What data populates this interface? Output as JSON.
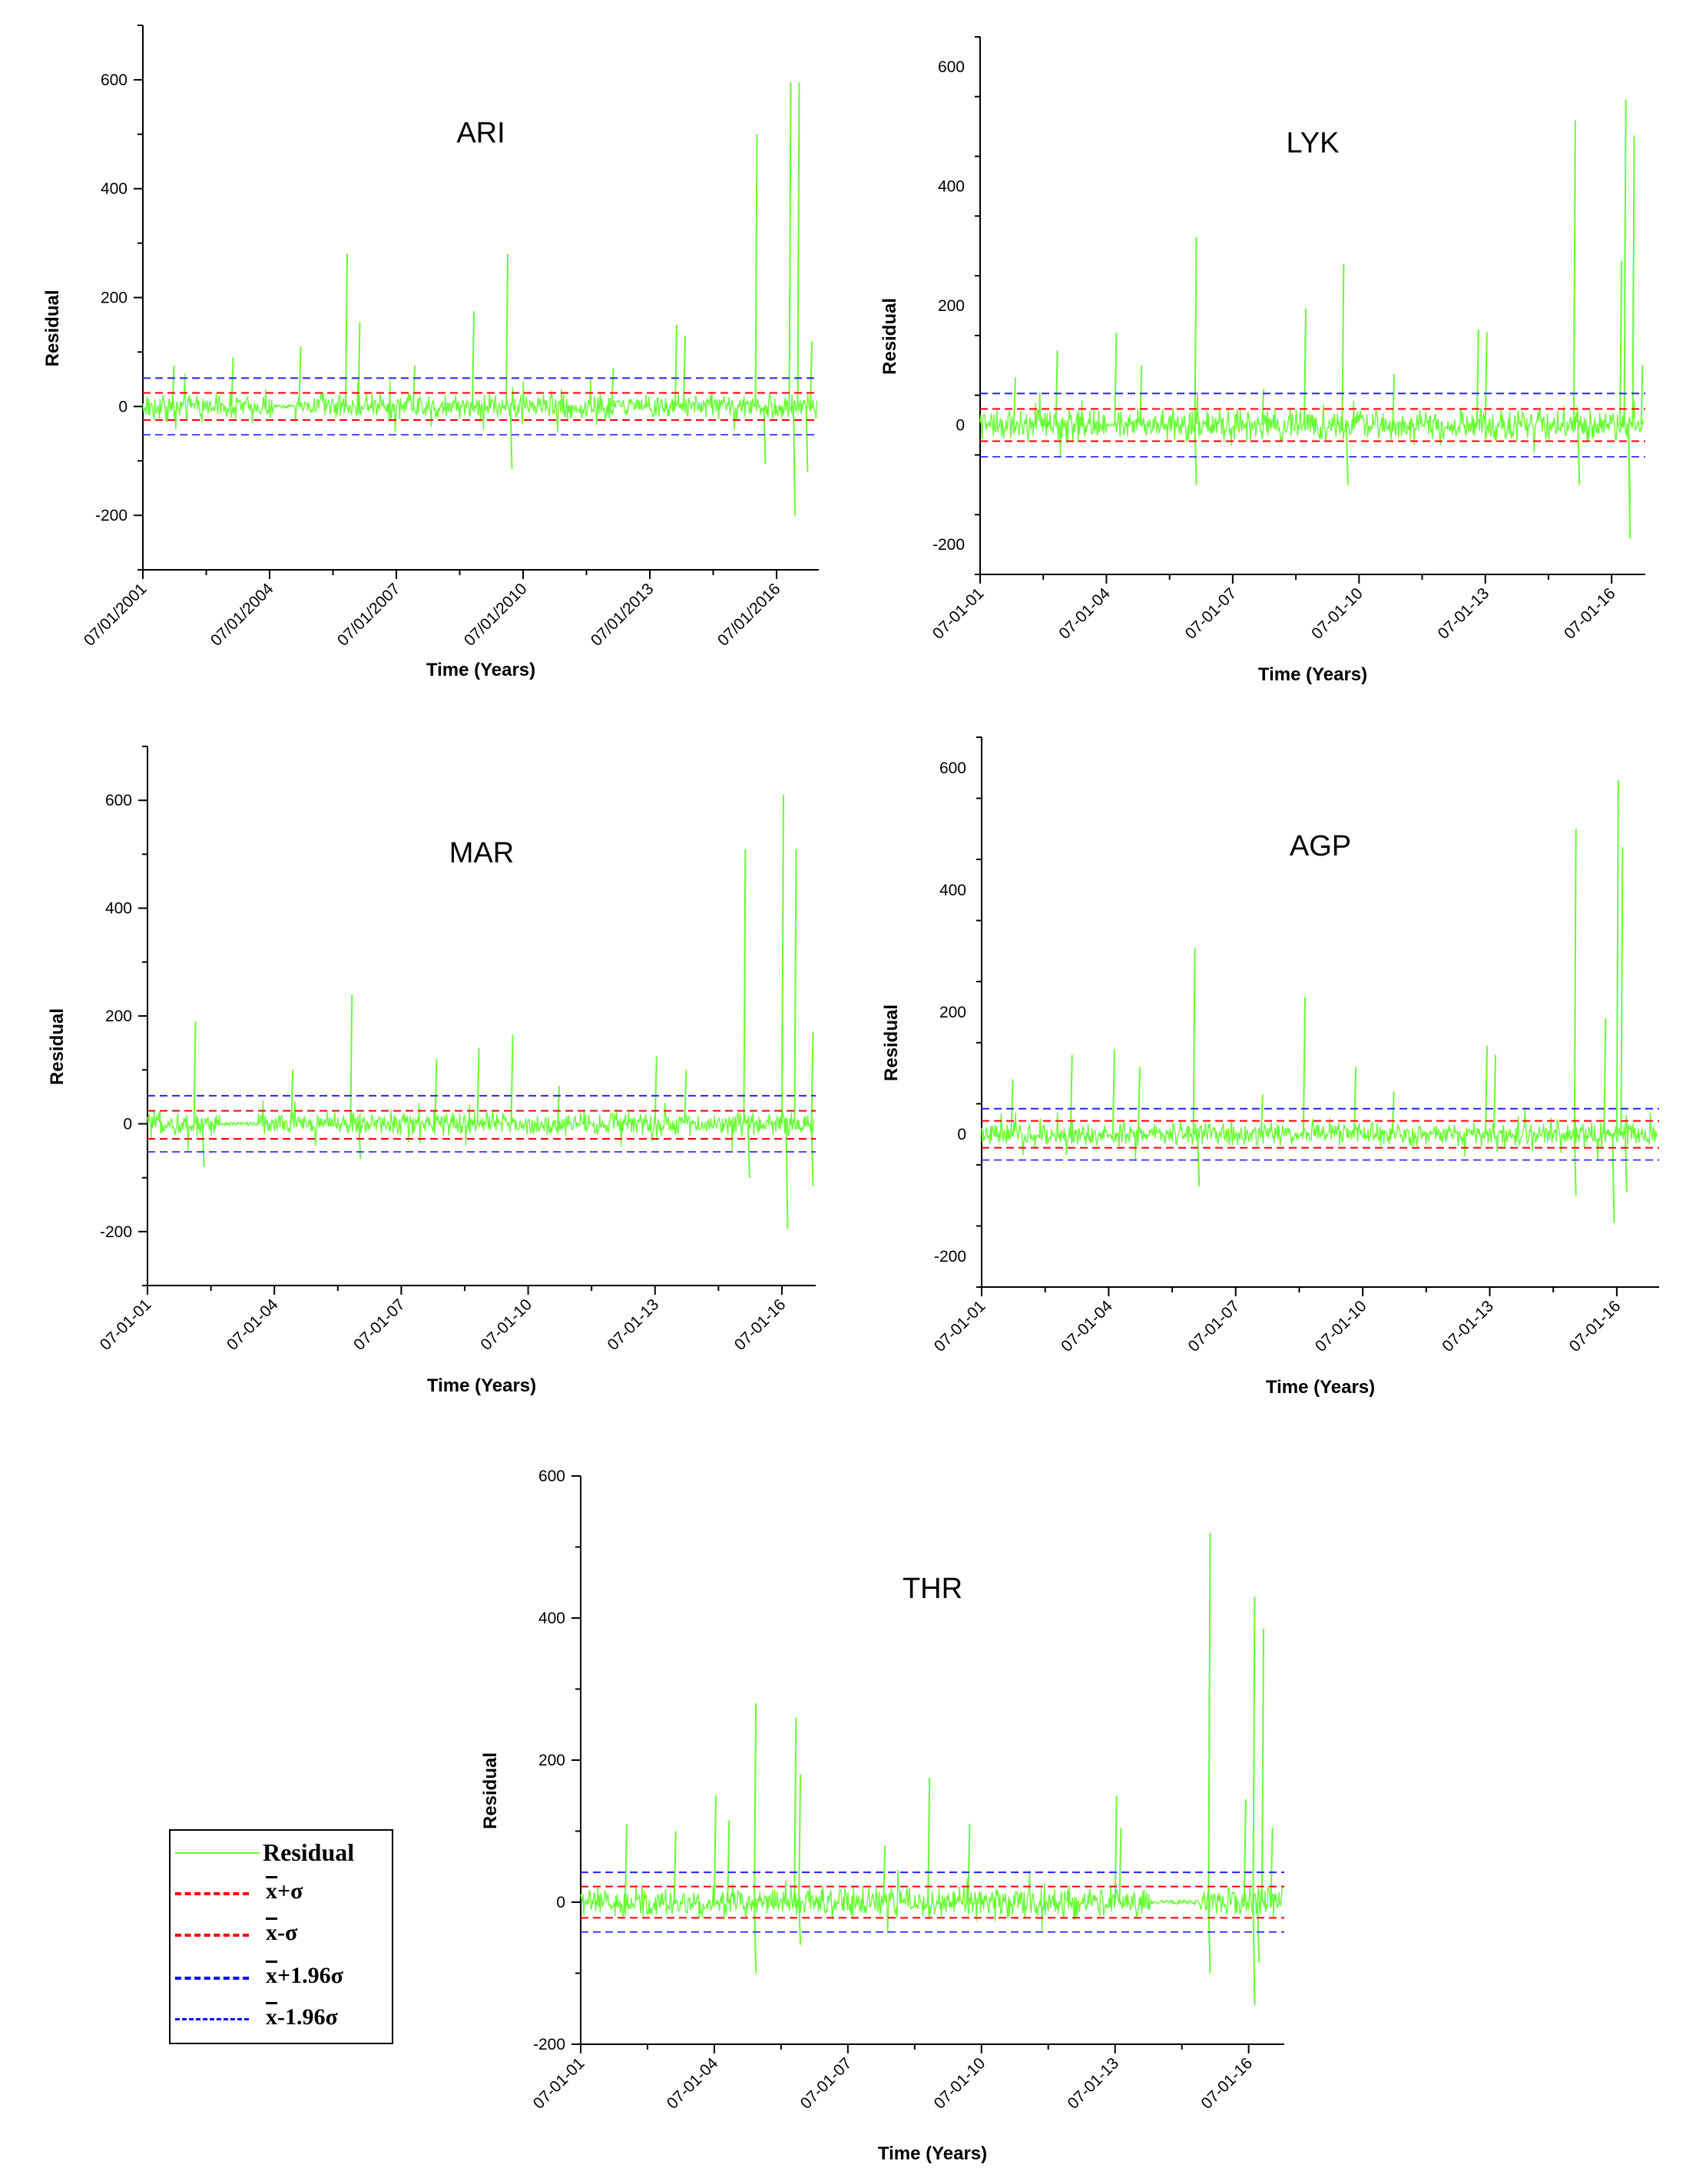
{
  "chart_data": [
    {
      "type": "line",
      "title": "ARI",
      "xlabel": "Time (Years)",
      "ylabel": "Residual",
      "xticks": [
        "07/01/2001",
        "07/01/2004",
        "07/01/2007",
        "07/01/2010",
        "07/01/2013",
        "07/01/2016"
      ],
      "xlim": [
        2001.5,
        2017.5
      ],
      "ylim": [
        -300,
        700
      ],
      "yticks": [
        -200,
        0,
        200,
        400,
        600
      ],
      "thresholds": {
        "mean_plus_sigma": 25,
        "mean_minus_sigma": -25,
        "mean_plus_1_96_sigma": 52,
        "mean_minus_1_96_sigma": -52
      },
      "gaps": [
        [
          2004.6,
          2005.1
        ]
      ],
      "spikes": [
        [
          2002.2,
          75
        ],
        [
          2003.6,
          90
        ],
        [
          2005.2,
          110
        ],
        [
          2006.3,
          280
        ],
        [
          2006.6,
          155
        ],
        [
          2007.9,
          75
        ],
        [
          2009.3,
          175
        ],
        [
          2010.1,
          280
        ],
        [
          2010.2,
          -115
        ],
        [
          2012.6,
          70
        ],
        [
          2014.1,
          150
        ],
        [
          2014.3,
          130
        ],
        [
          2016.0,
          500
        ],
        [
          2016.2,
          -105
        ],
        [
          2016.8,
          595
        ],
        [
          2017.0,
          595
        ],
        [
          2016.9,
          -200
        ],
        [
          2017.2,
          -120
        ],
        [
          2017.3,
          120
        ]
      ],
      "series": [
        {
          "name": "Residual",
          "noise": 22
        }
      ]
    },
    {
      "type": "line",
      "title": "LYK",
      "xlabel": "Time (Years)",
      "ylabel": "Residual",
      "xticks": [
        "07-01-01",
        "07-01-04",
        "07-01-07",
        "07-01-10",
        "07-01-13",
        "07-01-16"
      ],
      "xlim": [
        2001.5,
        2017.3
      ],
      "ylim": [
        -250,
        650
      ],
      "yticks": [
        -200,
        0,
        200,
        400,
        600
      ],
      "thresholds": {
        "mean_plus_sigma": 27,
        "mean_minus_sigma": -27,
        "mean_plus_1_96_sigma": 53,
        "mean_minus_1_96_sigma": -53
      },
      "gaps": [
        [
          2004.5,
          2004.7
        ]
      ],
      "spikes": [
        [
          2002.3,
          80
        ],
        [
          2003.3,
          125
        ],
        [
          2004.7,
          155
        ],
        [
          2005.3,
          100
        ],
        [
          2006.6,
          315
        ],
        [
          2006.6,
          -100
        ],
        [
          2008.2,
          60
        ],
        [
          2009.2,
          195
        ],
        [
          2010.1,
          270
        ],
        [
          2010.2,
          -100
        ],
        [
          2011.3,
          85
        ],
        [
          2013.3,
          160
        ],
        [
          2013.5,
          155
        ],
        [
          2015.6,
          510
        ],
        [
          2015.7,
          -100
        ],
        [
          2016.7,
          275
        ],
        [
          2016.8,
          545
        ],
        [
          2016.9,
          -190
        ],
        [
          2017.0,
          485
        ],
        [
          2016.9,
          -130
        ],
        [
          2017.2,
          100
        ]
      ],
      "series": [
        {
          "name": "Residual",
          "noise": 24
        }
      ]
    },
    {
      "type": "line",
      "title": "MAR",
      "xlabel": "Time (Years)",
      "ylabel": "Residual",
      "xticks": [
        "07-01-01",
        "07-01-04",
        "07-01-07",
        "07-01-10",
        "07-01-13",
        "07-01-16"
      ],
      "xlim": [
        2001.5,
        2017.3
      ],
      "ylim": [
        -300,
        700
      ],
      "yticks": [
        -200,
        0,
        200,
        400,
        600
      ],
      "thresholds": {
        "mean_plus_sigma": 24,
        "mean_minus_sigma": -28,
        "mean_plus_1_96_sigma": 52,
        "mean_minus_1_96_sigma": -52
      },
      "gaps": [
        [
          2003.2,
          2004.1
        ]
      ],
      "spikes": [
        [
          2002.6,
          190
        ],
        [
          2002.8,
          -80
        ],
        [
          2004.9,
          100
        ],
        [
          2006.3,
          240
        ],
        [
          2006.5,
          -65
        ],
        [
          2008.3,
          120
        ],
        [
          2009.3,
          140
        ],
        [
          2010.1,
          165
        ],
        [
          2011.2,
          70
        ],
        [
          2013.5,
          125
        ],
        [
          2014.2,
          100
        ],
        [
          2015.6,
          510
        ],
        [
          2015.7,
          -100
        ],
        [
          2016.5,
          610
        ],
        [
          2016.6,
          -195
        ],
        [
          2016.8,
          510
        ],
        [
          2017.2,
          170
        ],
        [
          2017.2,
          -115
        ]
      ],
      "series": [
        {
          "name": "Residual",
          "noise": 20
        }
      ]
    },
    {
      "type": "line",
      "title": "AGP",
      "xlabel": "Time (Years)",
      "ylabel": "Residual",
      "xticks": [
        "07-01-01",
        "07-01-04",
        "07-01-07",
        "07-01-10",
        "07-01-13",
        "07-01-16"
      ],
      "xlim": [
        2001.5,
        2017.5
      ],
      "ylim": [
        -250,
        650
      ],
      "yticks": [
        -200,
        0,
        200,
        400,
        600
      ],
      "thresholds": {
        "mean_plus_sigma": 22,
        "mean_minus_sigma": -22,
        "mean_plus_1_96_sigma": 42,
        "mean_minus_1_96_sigma": -42
      },
      "gaps": [],
      "spikes": [
        [
          2002.2,
          90
        ],
        [
          2003.6,
          130
        ],
        [
          2004.6,
          140
        ],
        [
          2005.2,
          110
        ],
        [
          2006.5,
          305
        ],
        [
          2006.6,
          -85
        ],
        [
          2008.1,
          65
        ],
        [
          2009.1,
          225
        ],
        [
          2010.3,
          110
        ],
        [
          2011.2,
          70
        ],
        [
          2013.4,
          145
        ],
        [
          2013.6,
          130
        ],
        [
          2015.5,
          500
        ],
        [
          2015.5,
          -100
        ],
        [
          2016.2,
          190
        ],
        [
          2016.5,
          580
        ],
        [
          2016.4,
          -145
        ],
        [
          2016.6,
          470
        ],
        [
          2016.7,
          -95
        ]
      ],
      "series": [
        {
          "name": "Residual",
          "noise": 17
        }
      ]
    },
    {
      "type": "line",
      "title": "THR",
      "xlabel": "Time (Years)",
      "ylabel": "Residual",
      "xticks": [
        "07-01-01",
        "07-01-04",
        "07-01-07",
        "07-01-10",
        "07-01-13",
        "07-01-16"
      ],
      "xlim": [
        2001.5,
        2017.3
      ],
      "ylim": [
        -200,
        600
      ],
      "yticks": [
        -200,
        0,
        200,
        400,
        600
      ],
      "thresholds": {
        "mean_plus_sigma": 22,
        "mean_minus_sigma": -22,
        "mean_plus_1_96_sigma": 42,
        "mean_minus_1_96_sigma": -42
      },
      "gaps": [
        [
          2014.3,
          2015.4
        ]
      ],
      "spikes": [
        [
          2002.5,
          110
        ],
        [
          2003.6,
          100
        ],
        [
          2004.5,
          150
        ],
        [
          2004.8,
          115
        ],
        [
          2005.4,
          280
        ],
        [
          2005.4,
          -100
        ],
        [
          2006.3,
          260
        ],
        [
          2006.4,
          180
        ],
        [
          2006.4,
          -60
        ],
        [
          2008.3,
          80
        ],
        [
          2009.3,
          175
        ],
        [
          2010.2,
          110
        ],
        [
          2013.5,
          150
        ],
        [
          2013.6,
          105
        ],
        [
          2015.6,
          520
        ],
        [
          2015.6,
          -100
        ],
        [
          2016.4,
          145
        ],
        [
          2016.6,
          430
        ],
        [
          2016.6,
          -145
        ],
        [
          2016.8,
          385
        ],
        [
          2016.7,
          -85
        ],
        [
          2017.0,
          105
        ]
      ],
      "series": [
        {
          "name": "Residual",
          "noise": 20
        }
      ]
    }
  ],
  "legend": {
    "entries": [
      {
        "label": "Residual",
        "color": "#66ff33",
        "style": "solid"
      },
      {
        "label_bar": "x",
        "label_rest": "+σ",
        "color": "#ff0000",
        "style": "dashed"
      },
      {
        "label_bar": "x",
        "label_rest": "-σ",
        "color": "#ff0000",
        "style": "dashed"
      },
      {
        "label_bar": "x",
        "label_rest": "+1.96σ",
        "color": "#0000ff",
        "style": "dashed"
      },
      {
        "label_bar": "x",
        "label_rest": "-1.96σ",
        "color": "#0000ff",
        "style": "dashed"
      }
    ]
  },
  "colors": {
    "residual": "#66ff33",
    "sigma": "#ff0000",
    "sigma196": "#2222ff",
    "axis": "#000000"
  }
}
